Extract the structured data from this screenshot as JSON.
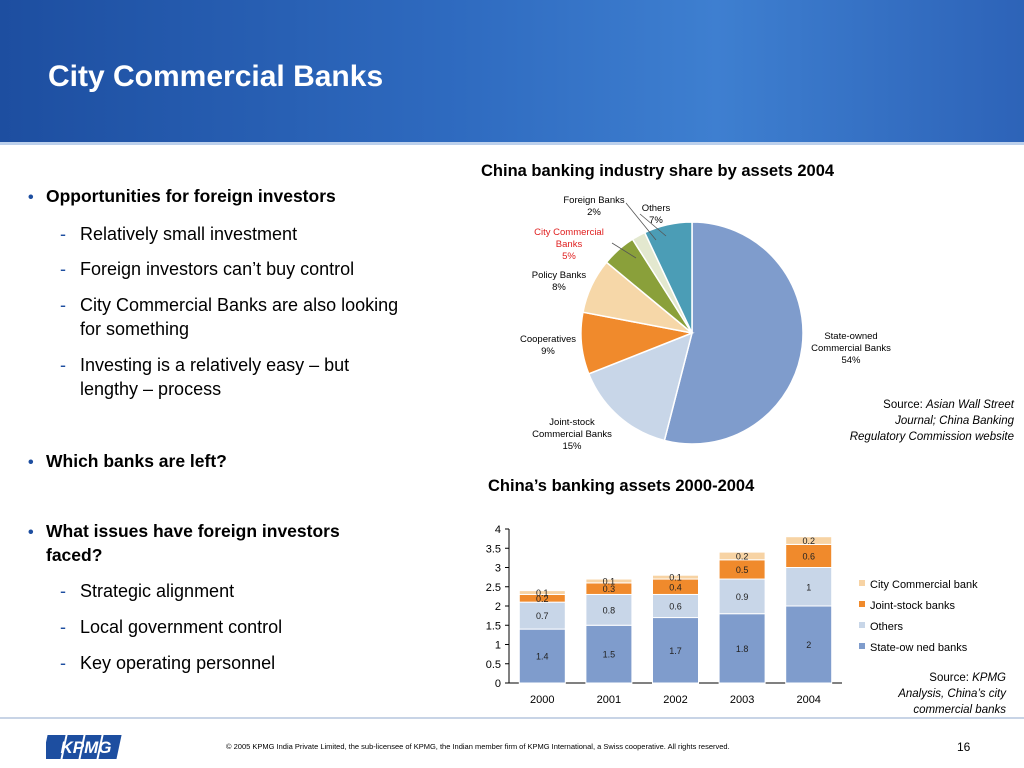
{
  "slide": {
    "title": "City Commercial Banks",
    "footer": "© 2005 KPMG India Private Limited, the sub-licensee of KPMG, the Indian member firm of KPMG International, a Swiss cooperative. All rights reserved.",
    "page_number": "16",
    "logo_text": "KPMG"
  },
  "bullets": [
    {
      "text": "Opportunities for foreign investors",
      "subs": [
        "Relatively small investment",
        "Foreign investors can’t buy  control",
        "City Commercial Banks are also looking",
        "for something",
        "Investing is a relatively easy – but",
        "lengthy – process"
      ]
    },
    {
      "text": "Which banks are left?",
      "subs": []
    },
    {
      "text": "What issues have foreign investors",
      "text2": "faced?",
      "subs": [
        "Strategic alignment",
        "Local government control",
        "Key operating personnel"
      ]
    }
  ],
  "pie": {
    "title": "China banking industry share by assets 2004",
    "source_prefix": "Source: ",
    "source_lines": [
      "Asian Wall Street",
      "Journal; China Banking",
      "Regulatory Commission website"
    ],
    "labels": {
      "state_line1": "State-owned",
      "state_line2": "Commercial Banks",
      "state_pct": "54%",
      "joint_line1": "Joint-stock",
      "joint_line2": "Commercial Banks",
      "joint_pct": "15%",
      "coop_line1": "Cooperatives",
      "coop_pct": "9%",
      "policy_line1": "Policy Banks",
      "policy_pct": "8%",
      "city_line1": "City Commercial",
      "city_line2": "Banks",
      "city_pct": "5%",
      "foreign_line1": "Foreign Banks",
      "foreign_pct": "2%",
      "others_line1": "Others",
      "others_pct": "7%"
    }
  },
  "bar": {
    "title": "China’s banking assets 2000-2004",
    "source_prefix": "Source: ",
    "source_lines": [
      "KPMG",
      "Analysis, China’s city",
      "commercial banks"
    ]
  },
  "colors": {
    "header_blue": "#1d4ea0",
    "state_owned": "#7f9ccc",
    "joint_stock": "#c8d6e8",
    "cooperatives": "#f08a2c",
    "policy": "#f6d7a8",
    "city_commercial": "#f08a2c",
    "city_commercial_bar": "#f7d3a4",
    "foreign": "#8aa03a",
    "others": "#4b9db6",
    "pie_small": "#e3e8cf"
  },
  "chart_data": [
    {
      "type": "pie",
      "title": "China banking industry share by assets 2004",
      "slices": [
        {
          "label": "State-owned Commercial Banks",
          "value": 54
        },
        {
          "label": "Joint-stock Commercial Banks",
          "value": 15
        },
        {
          "label": "Cooperatives",
          "value": 9
        },
        {
          "label": "Policy Banks",
          "value": 8
        },
        {
          "label": "City Commercial Banks",
          "value": 5
        },
        {
          "label": "Foreign Banks",
          "value": 2
        },
        {
          "label": "Others",
          "value": 7
        }
      ],
      "unit": "%"
    },
    {
      "type": "bar",
      "stacked": true,
      "title": "China’s banking assets 2000-2004",
      "categories": [
        "2000",
        "2001",
        "2002",
        "2003",
        "2004"
      ],
      "ylim": [
        0,
        4
      ],
      "yticks": [
        "0",
        "0.5",
        "1",
        "1.5",
        "2",
        "2.5",
        "3",
        "3.5",
        "4"
      ],
      "legend_position": "right",
      "legend_order": [
        "City Commercial bank",
        "Joint-stock banks",
        "Others",
        "State-ow ned banks"
      ],
      "series": [
        {
          "name": "State-ow ned banks",
          "values": [
            1.4,
            1.5,
            1.7,
            1.8,
            2
          ],
          "labels": [
            "1.4",
            "1.5",
            "1.7",
            "1.8",
            "2"
          ],
          "color": "#7f9ccc"
        },
        {
          "name": "Others",
          "values": [
            0.7,
            0.8,
            0.6,
            0.9,
            1
          ],
          "labels": [
            "0.7",
            "0.8",
            "0.6",
            "0.9",
            "1"
          ],
          "color": "#c8d6e8"
        },
        {
          "name": "Joint-stock banks",
          "values": [
            0.2,
            0.3,
            0.4,
            0.5,
            0.6
          ],
          "labels": [
            "0.2",
            "0.3",
            "0.4",
            "0.5",
            "0.6"
          ],
          "color": "#f08a2c"
        },
        {
          "name": "City Commercial bank",
          "values": [
            0.1,
            0.1,
            0.1,
            0.2,
            0.2
          ],
          "labels": [
            "0.1",
            "0.1",
            "0.1",
            "0.2",
            "0.2"
          ],
          "color": "#f7d3a4"
        }
      ]
    }
  ]
}
